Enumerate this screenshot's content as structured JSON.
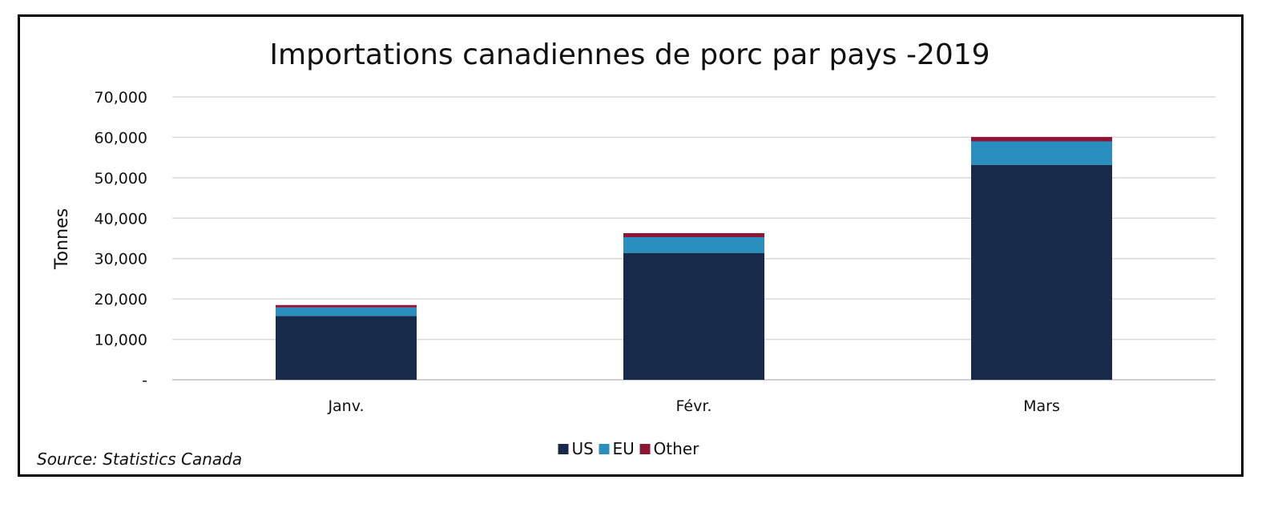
{
  "chart_data": {
    "type": "bar",
    "stacked": true,
    "title": "Importations canadiennes de porc par pays -2019",
    "xlabel": "",
    "ylabel": "Tonnes",
    "categories": [
      "Janv.",
      "Févr.",
      "Mars"
    ],
    "series": [
      {
        "name": "US",
        "values": [
          15800,
          31400,
          53200
        ],
        "color": "#172a4a"
      },
      {
        "name": "EU",
        "values": [
          2100,
          3900,
          5800
        ],
        "color": "#2a8fbf"
      },
      {
        "name": "Other",
        "values": [
          600,
          1000,
          1100
        ],
        "color": "#8c1538"
      }
    ],
    "ylim": [
      0,
      70000
    ],
    "yticks": [
      0,
      10000,
      20000,
      30000,
      40000,
      50000,
      60000,
      70000
    ],
    "ytick_labels": [
      "-",
      "10,000",
      "20,000",
      "30,000",
      "40,000",
      "50,000",
      "60,000",
      "70,000"
    ],
    "grid": true,
    "legend_position": "bottom"
  },
  "source": "Source: Statistics Canada"
}
